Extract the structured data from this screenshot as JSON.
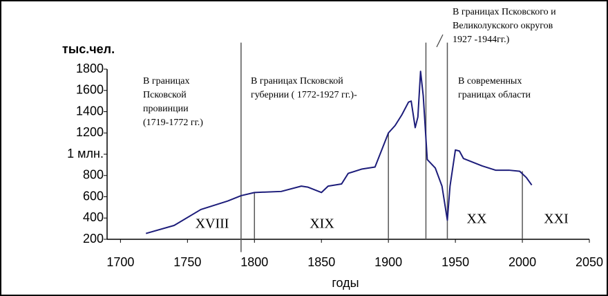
{
  "chart_data": {
    "type": "line",
    "y_label": "тыс.чел.",
    "x_label": "годы",
    "xlim": [
      1690,
      2050
    ],
    "xticks": [
      1700,
      1750,
      1800,
      1850,
      1900,
      1950,
      2000,
      2050
    ],
    "ylim": [
      200,
      1800
    ],
    "yticks": [
      200,
      400,
      600,
      800,
      {
        "value": 1000,
        "label": "1 млн."
      },
      1200,
      1400,
      1600,
      1800
    ],
    "series": [
      {
        "color": "#1c1c7a",
        "x": [
          1719,
          1740,
          1760,
          1780,
          1790,
          1800,
          1820,
          1835,
          1840,
          1850,
          1855,
          1865,
          1870,
          1880,
          1890,
          1900,
          1905,
          1910,
          1915,
          1917,
          1920,
          1922,
          1924,
          1926,
          1929,
          1935,
          1940,
          1944,
          1946,
          1950,
          1953,
          1956,
          1970,
          1980,
          1990,
          1998,
          2003,
          2007
        ],
        "values": [
          255,
          330,
          480,
          560,
          610,
          640,
          650,
          700,
          690,
          640,
          700,
          720,
          820,
          860,
          880,
          1200,
          1270,
          1370,
          1490,
          1500,
          1250,
          1350,
          1780,
          1550,
          950,
          870,
          700,
          380,
          700,
          1040,
          1030,
          960,
          890,
          850,
          850,
          840,
          780,
          710
        ]
      }
    ],
    "dividers": [
      {
        "x": 1790,
        "y": [
          80,
          2050
        ]
      },
      {
        "x": 1800,
        "y": [
          200,
          640
        ]
      },
      {
        "x": 1900,
        "y": [
          200,
          1200
        ]
      },
      {
        "x": 1928,
        "y": [
          200,
          2050
        ]
      },
      {
        "x": 1944,
        "y": [
          200,
          2050
        ]
      },
      {
        "x": 2000,
        "y": [
          200,
          840
        ]
      }
    ],
    "annotations": [
      [
        "В границах",
        "Псковской",
        "провинции",
        "(1719-1772 гг.)"
      ],
      [
        "В границах Псковской",
        "губернии ( 1772-1927 гг.)-"
      ],
      [
        "В границах Псковского и",
        "Великолукского округов",
        "1927 -1944гг.)"
      ],
      [
        "В современных",
        "границах области"
      ]
    ],
    "centuries": [
      "XVIII",
      "XIX",
      "XX",
      "XXI"
    ]
  }
}
